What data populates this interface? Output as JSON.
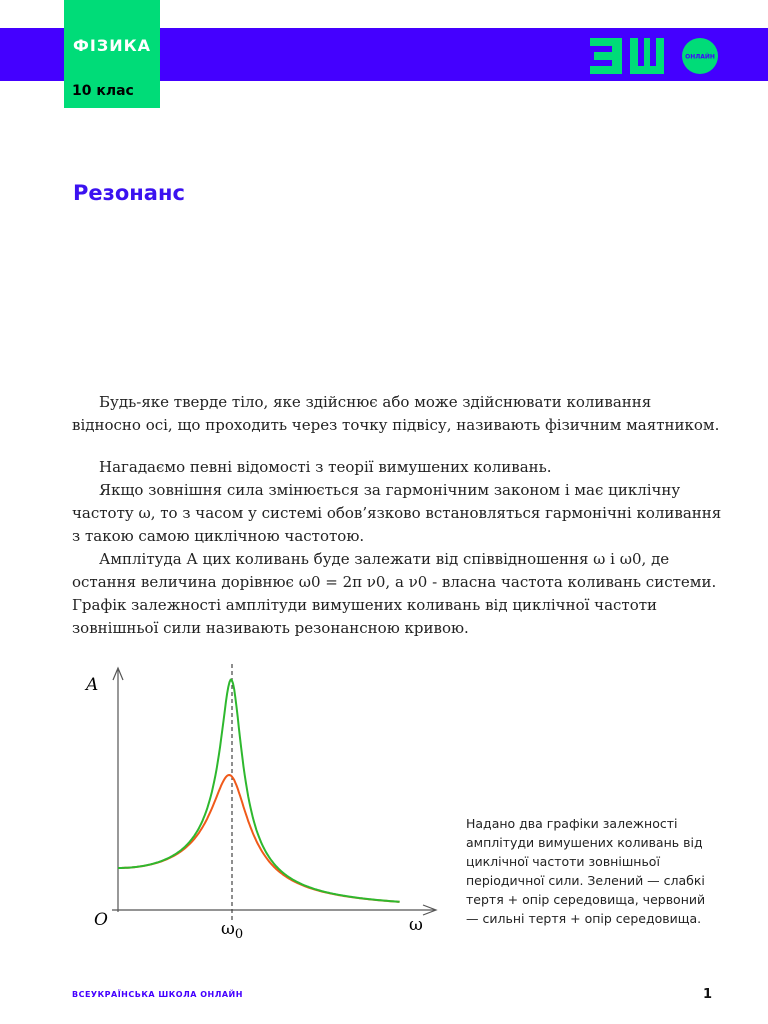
{
  "header": {
    "subject": "ФІЗИКА",
    "grade": "10 клас",
    "logo_text": "ОНЛАЙН",
    "colors": {
      "band": "#4400ff",
      "accent": "#00dc78"
    }
  },
  "title": "Резонанс",
  "paragraphs": [
    "Будь-яке тверде тіло, яке здійснює або може здійснювати коливання відносно осі, що проходить через точку підвісу, називають фізичним маятником.",
    "Нагадаємо певні відомості з теорії вимушених коливань.",
    "Якщо зовнішня сила змінюється за гармонічним законом і має циклічну частоту ω, то з часом у системі обов’язково встановляться гармонічні коливання з такою самою циклічною частотою.",
    "Амплітуда А цих коливань буде залежати від співвідношення ω і ω0, де остання величина дорівнює ω0 = 2π ν0, а ν0 - власна частота коливань системи. Графік залежності амплітуди вимушених коливань від циклічної частоти зовнішньої сили називають резонансною кривою."
  ],
  "figure": {
    "y_label": "A",
    "x_label": "ω",
    "origin_label": "O",
    "resonance_label": "ω",
    "resonance_sub": "0",
    "curve_colors": {
      "weak_damping": "#2eb82e",
      "strong_damping": "#f05a1a"
    }
  },
  "caption": "Надано два графіки залежності амплітуди вимушених коливань від циклічної частоти зовнішньої періодичної сили. Зелений — слабкі тертя + опір середовища, червоний — сильні тертя + опір середовища.",
  "footer": {
    "school": "ВСЕУКРАЇНСЬКА ШКОЛА ОНЛАЙН",
    "page": "1"
  }
}
